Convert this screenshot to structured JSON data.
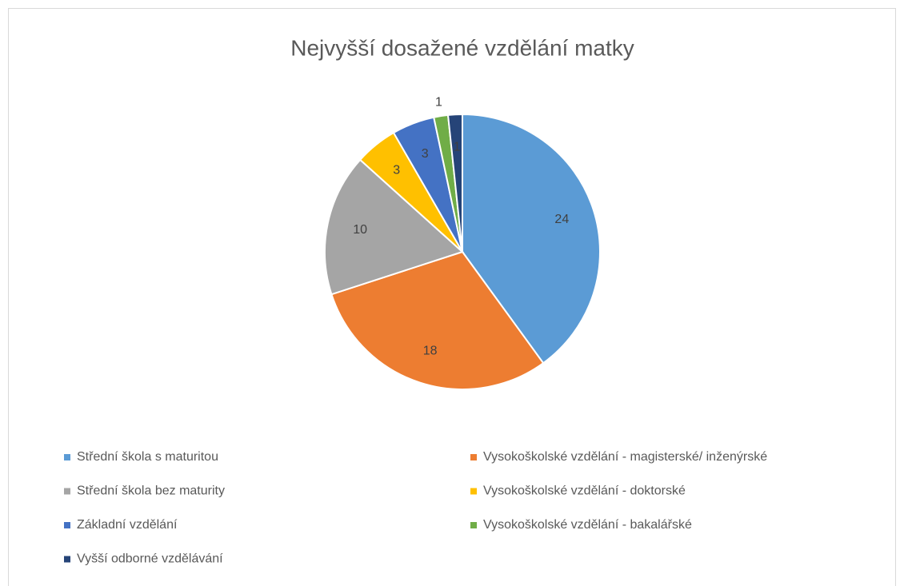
{
  "chart_data": {
    "type": "pie",
    "title": "Nejvyšší dosažené vzdělání matky",
    "categories": [
      "Střední škola s maturitou",
      "Vysokoškolské vzdělání - magisterské/ inženýrské",
      "Střední škola bez maturity",
      "Vysokoškolské vzdělání - doktorské",
      "Základní vzdělání",
      "Vysokoškolské vzdělání - bakalářské",
      "Vyšší odborné vzdělávání"
    ],
    "values": [
      24,
      18,
      10,
      3,
      3,
      1,
      1
    ],
    "colors": [
      "#5b9bd5",
      "#ed7d31",
      "#a5a5a5",
      "#ffc000",
      "#4472c4",
      "#70ad47",
      "#264478"
    ],
    "legend": "bottom"
  }
}
